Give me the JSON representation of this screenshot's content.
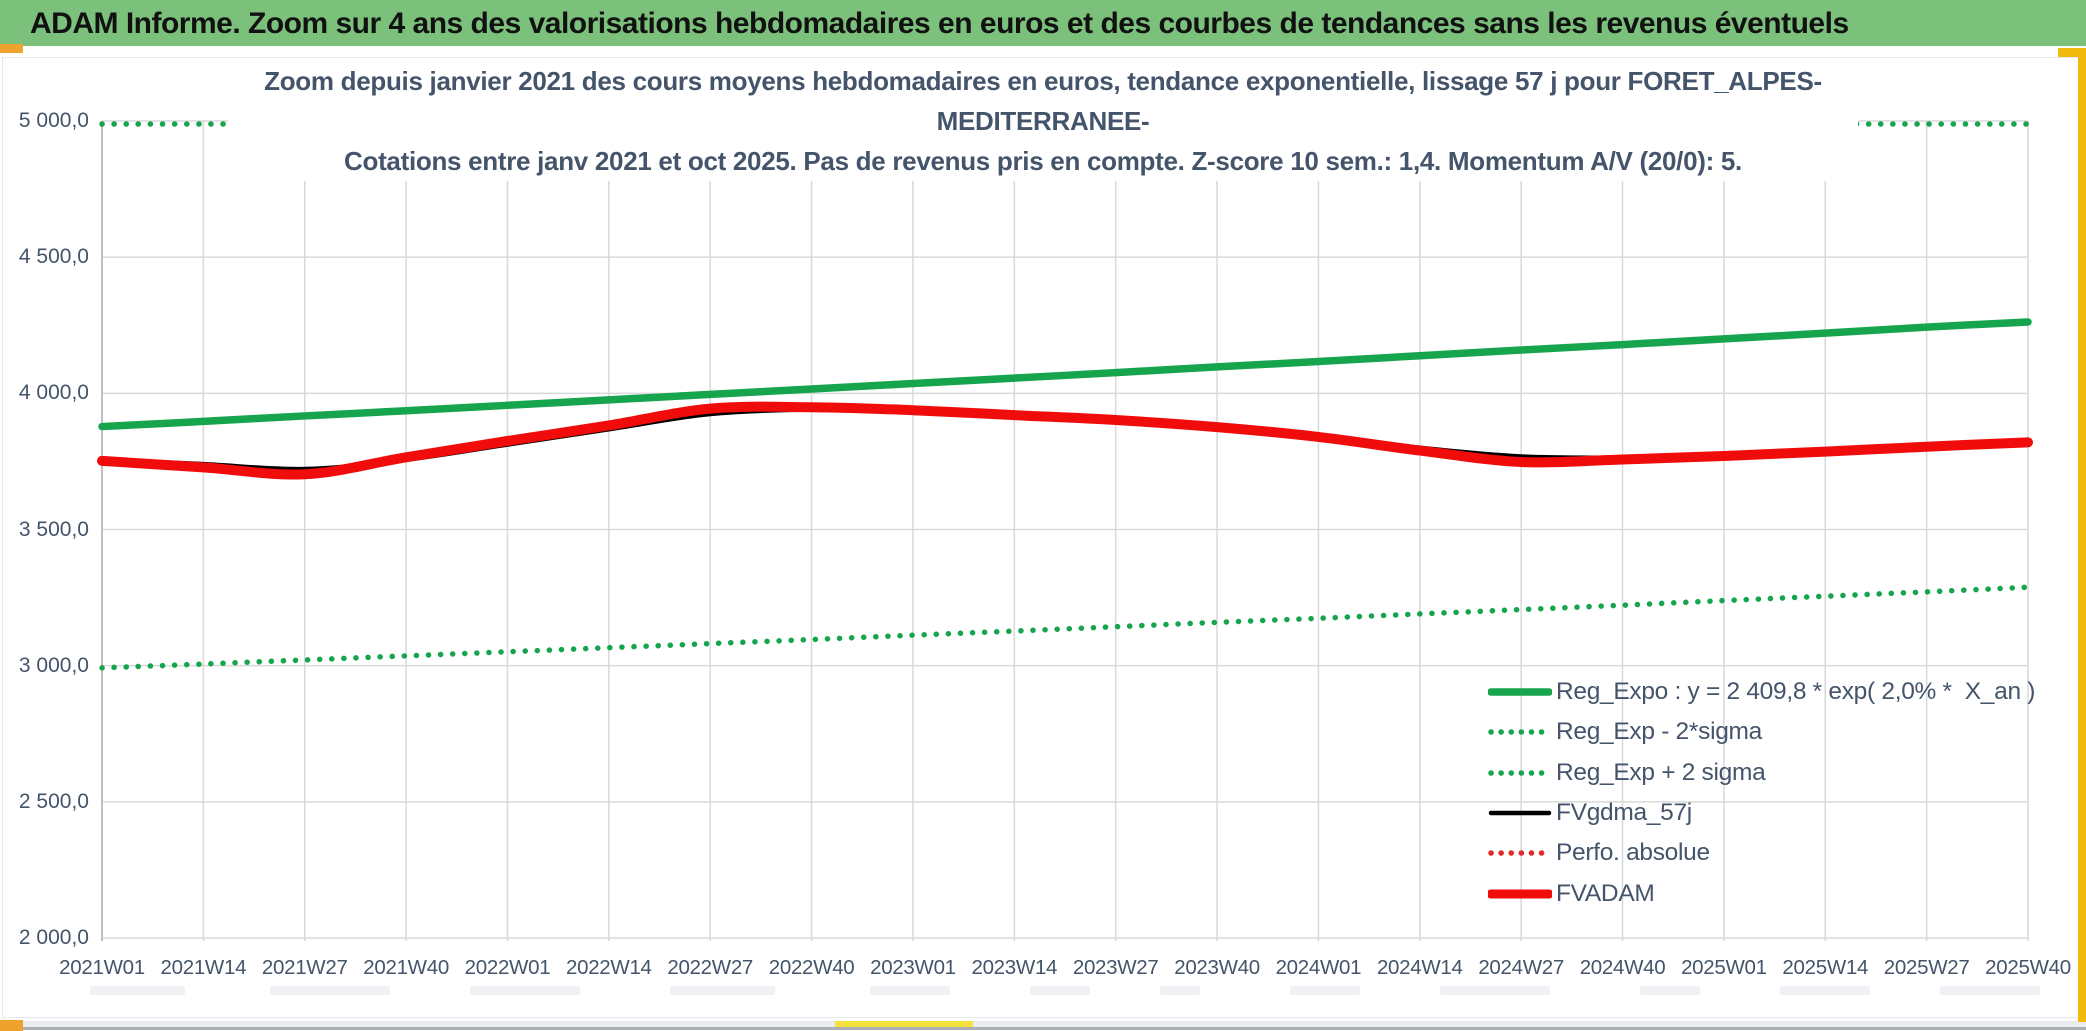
{
  "header": {
    "title": "ADAM Informe. Zoom sur 4 ans des valorisations hebdomadaires en euros et des courbes de tendances sans les revenus éventuels"
  },
  "chart": {
    "title_line1": "Zoom depuis janvier 2021 des cours moyens hebdomadaires en euros, tendance exponentielle, lissage 57 j pour FORET_ALPES-MEDITERRANEE-",
    "title_line2": "Cotations entre janv 2021 et oct 2025. Pas de revenus pris en compte. Z-score 10 sem.: 1,4. Momentum A/V (20/0): 5."
  },
  "colors": {
    "header_bg": "#7CC17B",
    "text_dark": "#44546A",
    "grid": "#D9D9D9",
    "axis": "#BFBFBF",
    "series_green": "#16A54C",
    "series_red": "#F10C0C",
    "series_red_dotted": "#E02A2A",
    "series_black": "#000000",
    "accent_amber": "#F2BA0D",
    "accent_orange": "#EFA32F",
    "accent_yellow": "#F4E23C"
  },
  "chart_data": {
    "type": "line",
    "title": "Zoom depuis janvier 2021 des cours moyens hebdomadaires en euros, tendance exponentielle, lissage 57 j pour FORET_ALPES-MEDITERRANEE- Cotations entre janv 2021 et oct 2025. Pas de revenus pris en compte. Z-score 10 sem.: 1,4. Momentum A/V (20/0): 5.",
    "categories": [
      "2021W01",
      "2021W14",
      "2021W27",
      "2021W40",
      "2022W01",
      "2022W14",
      "2022W27",
      "2022W40",
      "2023W01",
      "2023W14",
      "2023W27",
      "2023W40",
      "2024W01",
      "2024W14",
      "2024W27",
      "2024W40",
      "2025W01",
      "2025W14",
      "2025W27",
      "2025W40"
    ],
    "y_ticks": [
      {
        "label": "5 000,0",
        "value": 5000
      },
      {
        "label": "4 500,0",
        "value": 4500
      },
      {
        "label": "4 000,0",
        "value": 4000
      },
      {
        "label": "3 500,0",
        "value": 3500
      },
      {
        "label": "3 000,0",
        "value": 3000
      },
      {
        "label": "2 500,0",
        "value": 2500
      },
      {
        "label": "2 000,0",
        "value": 2000
      }
    ],
    "ylim": [
      2000,
      5000
    ],
    "grid": true,
    "legend_position": "inside-bottom-right",
    "series": [
      {
        "name": "Reg_Expo : y = 2 409,8 * exp( 2,0% *  X_an )",
        "color": "#16A54C",
        "style": "solid",
        "values": [
          3878,
          3897,
          3917,
          3936,
          3956,
          3976,
          3996,
          4016,
          4036,
          4056,
          4076,
          4097,
          4117,
          4138,
          4159,
          4179,
          4200,
          4221,
          4243,
          4262
        ]
      },
      {
        "name": "Reg_Exp - 2*sigma",
        "color": "#16A54C",
        "style": "dotted",
        "values": [
          2992,
          3006,
          3021,
          3036,
          3051,
          3066,
          3081,
          3096,
          3112,
          3127,
          3143,
          3159,
          3174,
          3190,
          3206,
          3222,
          3239,
          3255,
          3271,
          3288
        ]
      },
      {
        "name": "Reg_Exp + 2 sigma",
        "color": "#16A54C",
        "style": "dotted",
        "values": [
          5000,
          5000,
          5000,
          5000,
          5000,
          5000,
          5000,
          5000,
          5000,
          5000,
          5000,
          5000,
          5000,
          5000,
          5000,
          5000,
          5000,
          5000,
          5000,
          5000
        ]
      },
      {
        "name": "FVgdma_57j",
        "color": "#000000",
        "style": "solid",
        "values": [
          3757,
          3740,
          3722,
          3756,
          3812,
          3868,
          3924,
          3940,
          3930,
          3916,
          3900,
          3878,
          3846,
          3800,
          3768,
          3764,
          3772,
          3786,
          3800,
          3814
        ]
      },
      {
        "name": "Perfo. absolue",
        "color": "#E02A2A",
        "style": "dotted",
        "values": [
          3752,
          3728,
          3703,
          3765,
          3825,
          3882,
          3944,
          3949,
          3938,
          3920,
          3902,
          3876,
          3840,
          3790,
          3748,
          3757,
          3770,
          3786,
          3804,
          3820
        ]
      },
      {
        "name": "FVADAM",
        "color": "#F10C0C",
        "style": "solid",
        "values": [
          3752,
          3728,
          3703,
          3765,
          3825,
          3882,
          3944,
          3949,
          3938,
          3920,
          3902,
          3876,
          3840,
          3790,
          3748,
          3757,
          3770,
          3786,
          3804,
          3820
        ]
      }
    ]
  }
}
